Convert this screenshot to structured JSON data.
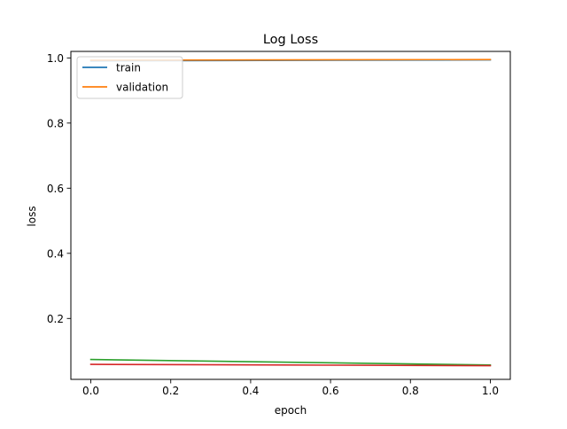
{
  "chart_data": {
    "type": "line",
    "title": "Log Loss",
    "xlabel": "epoch",
    "ylabel": "loss",
    "xlim": [
      -0.05,
      1.05
    ],
    "ylim": [
      0.013,
      1.02
    ],
    "x_ticks": [
      0.0,
      0.2,
      0.4,
      0.6,
      0.8,
      1.0
    ],
    "x_tick_labels": [
      "0.0",
      "0.2",
      "0.4",
      "0.6",
      "0.8",
      "1.0"
    ],
    "y_ticks": [
      0.2,
      0.4,
      0.6,
      0.8,
      1.0
    ],
    "y_tick_labels": [
      "0.2",
      "0.4",
      "0.6",
      "0.8",
      "1.0"
    ],
    "grid": false,
    "legend": {
      "placement": "upper-left",
      "entries": [
        "train",
        "validation"
      ]
    },
    "series": [
      {
        "name": "train",
        "color": "#1f77b4",
        "x": [
          0,
          1
        ],
        "y": [
          0.991,
          0.994
        ]
      },
      {
        "name": "validation",
        "color": "#ff7f0e",
        "x": [
          0,
          1
        ],
        "y": [
          0.993,
          0.995
        ]
      },
      {
        "color": "#2ca02c",
        "x": [
          0,
          1
        ],
        "y": [
          0.074,
          0.057
        ]
      },
      {
        "color": "#d62728",
        "x": [
          0,
          1
        ],
        "y": [
          0.059,
          0.055
        ]
      }
    ]
  }
}
